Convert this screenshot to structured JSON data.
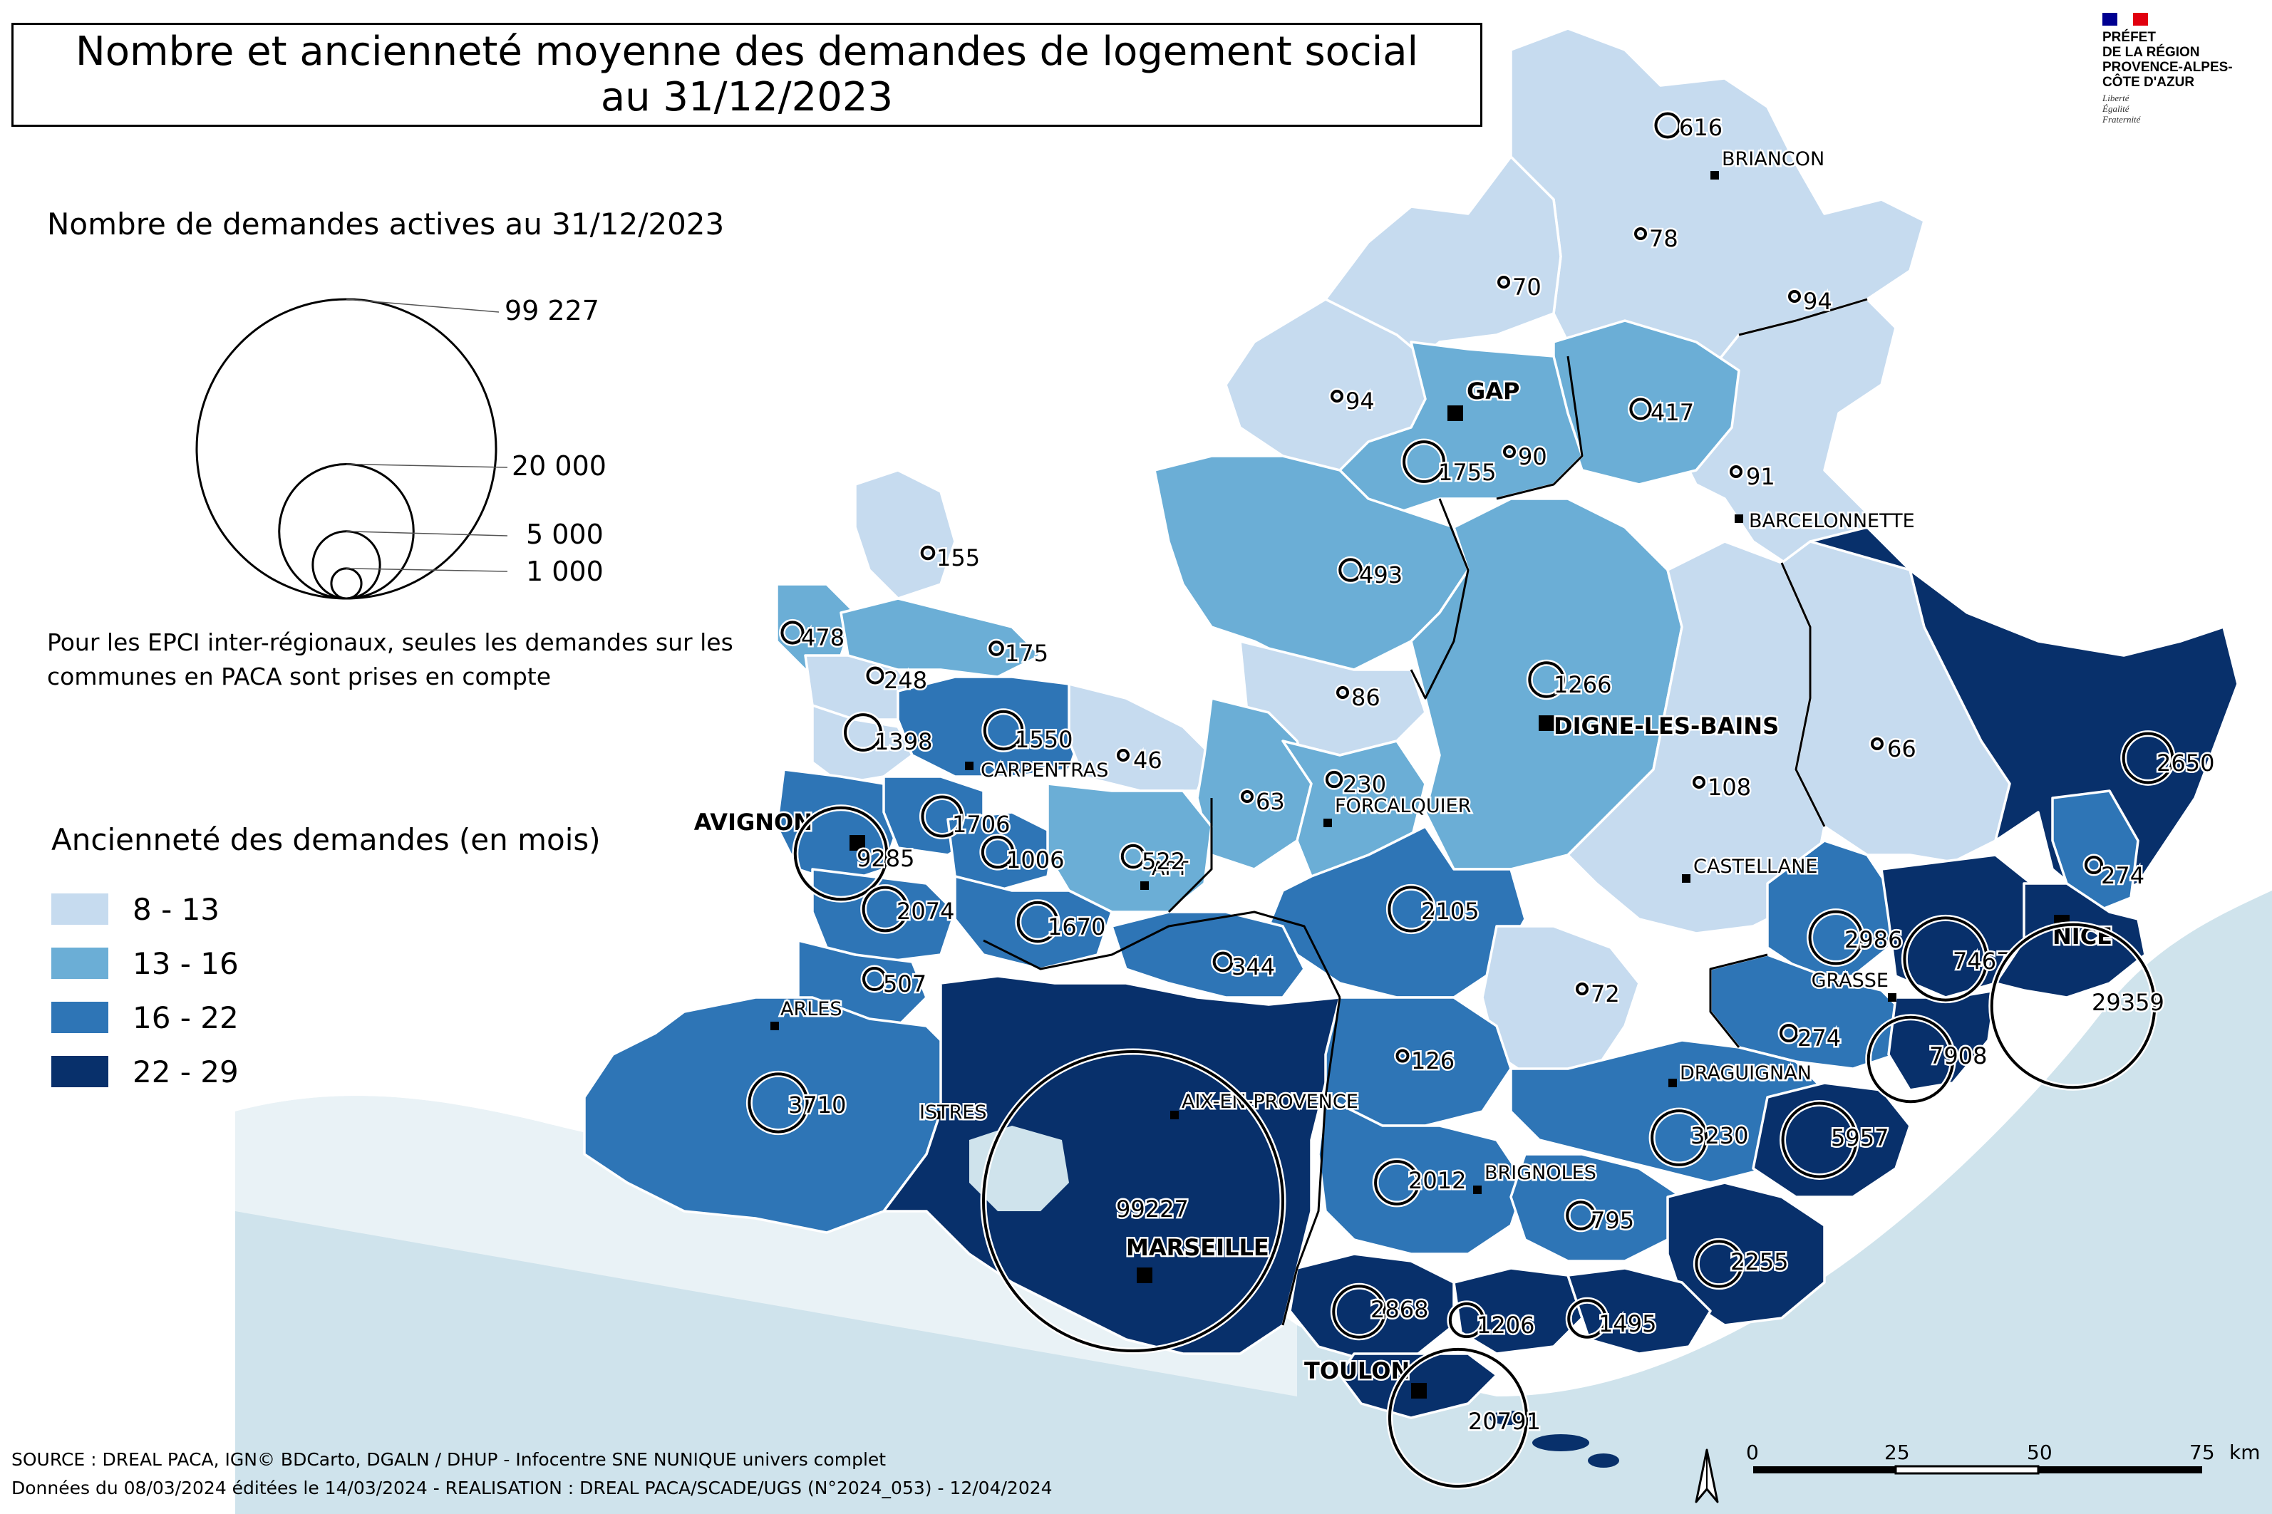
{
  "title": {
    "line1": "Nombre et ancienneté moyenne des demandes de logement social",
    "line2": "au 31/12/2023"
  },
  "logo": {
    "name_lines": [
      "PRÉFET",
      "DE LA RÉGION",
      "PROVENCE-ALPES-",
      "CÔTE D'AZUR"
    ],
    "motto": [
      "Liberté",
      "Égalité",
      "Fraternité"
    ],
    "flag_colors": [
      "#000091",
      "#ffffff",
      "#e1000f"
    ]
  },
  "legend_proportional": {
    "title": "Nombre de demandes actives au 31/12/2023",
    "values": [
      99227,
      20000,
      5000,
      1000
    ],
    "labels": [
      "99  227",
      "20  000",
      "5  000",
      "1  000"
    ]
  },
  "note": "Pour les EPCI inter-régionaux, seules les demandes sur les communes en PACA sont prises en compte",
  "legend_classes": {
    "title": "Ancienneté des demandes (en mois)",
    "classes": [
      {
        "label": "8 - 13",
        "color": "#c6dbef"
      },
      {
        "label": "13 - 16",
        "color": "#6baed6"
      },
      {
        "label": "16 - 22",
        "color": "#2e75b6"
      },
      {
        "label": "22 - 29",
        "color": "#08306b"
      }
    ]
  },
  "sea_color": "#cfe3ec",
  "cities": [
    {
      "name": "BRIANCON",
      "major": false
    },
    {
      "name": "GAP",
      "major": true
    },
    {
      "name": "BARCELONNETTE",
      "major": false
    },
    {
      "name": "DIGNE-LES-BAINS",
      "major": true
    },
    {
      "name": "CARPENTRAS",
      "major": false
    },
    {
      "name": "AVIGNON",
      "major": true
    },
    {
      "name": "FORCALQUIER",
      "major": false
    },
    {
      "name": "APT",
      "major": false
    },
    {
      "name": "CASTELLANE",
      "major": false
    },
    {
      "name": "GRASSE",
      "major": false
    },
    {
      "name": "NICE",
      "major": true
    },
    {
      "name": "ARLES",
      "major": false
    },
    {
      "name": "DRAGUIGNAN",
      "major": false
    },
    {
      "name": "ISTRES",
      "major": false
    },
    {
      "name": "AIX-EN-PROVENCE",
      "major": false
    },
    {
      "name": "BRIGNOLES",
      "major": false
    },
    {
      "name": "MARSEILLE",
      "major": true
    },
    {
      "name": "TOULON",
      "major": true
    }
  ],
  "epci_demands": [
    {
      "value": 616,
      "class": 0
    },
    {
      "value": 78,
      "class": 0
    },
    {
      "value": 70,
      "class": 0
    },
    {
      "value": 94,
      "class": 0
    },
    {
      "value": 94,
      "class": 0
    },
    {
      "value": 417,
      "class": 1
    },
    {
      "value": 1755,
      "class": 1
    },
    {
      "value": 90,
      "class": 1
    },
    {
      "value": 91,
      "class": 0
    },
    {
      "value": 155,
      "class": 0
    },
    {
      "value": 493,
      "class": 1
    },
    {
      "value": 478,
      "class": 1
    },
    {
      "value": 175,
      "class": 1
    },
    {
      "value": 248,
      "class": 0
    },
    {
      "value": 1266,
      "class": 1
    },
    {
      "value": 1398,
      "class": 0
    },
    {
      "value": 1550,
      "class": 2
    },
    {
      "value": 86,
      "class": 0
    },
    {
      "value": 46,
      "class": 0
    },
    {
      "value": 66,
      "class": 0
    },
    {
      "value": 2650,
      "class": 3
    },
    {
      "value": 63,
      "class": 1
    },
    {
      "value": 230,
      "class": 1
    },
    {
      "value": 108,
      "class": 0
    },
    {
      "value": 9285,
      "class": 2
    },
    {
      "value": 1706,
      "class": 2
    },
    {
      "value": 1006,
      "class": 2
    },
    {
      "value": 522,
      "class": 1
    },
    {
      "value": 274,
      "class": 2
    },
    {
      "value": 2074,
      "class": 2
    },
    {
      "value": 1670,
      "class": 2
    },
    {
      "value": 2105,
      "class": 2
    },
    {
      "value": 2986,
      "class": 2
    },
    {
      "value": 7467,
      "class": 3
    },
    {
      "value": 29359,
      "class": 3
    },
    {
      "value": 344,
      "class": 2
    },
    {
      "value": 507,
      "class": 2
    },
    {
      "value": 72,
      "class": 0
    },
    {
      "value": 126,
      "class": 2
    },
    {
      "value": 274,
      "class": 2
    },
    {
      "value": 7908,
      "class": 3
    },
    {
      "value": 3710,
      "class": 2
    },
    {
      "value": 3230,
      "class": 2
    },
    {
      "value": 5957,
      "class": 3
    },
    {
      "value": 99227,
      "class": 3
    },
    {
      "value": 2012,
      "class": 2
    },
    {
      "value": 795,
      "class": 2
    },
    {
      "value": 2255,
      "class": 3
    },
    {
      "value": 2868,
      "class": 3
    },
    {
      "value": 1206,
      "class": 3
    },
    {
      "value": 1495,
      "class": 3
    },
    {
      "value": 20791,
      "class": 3
    }
  ],
  "scale": {
    "ticks": [
      "0",
      "25",
      "50",
      "75"
    ],
    "unit": "km"
  },
  "source": {
    "line1": "SOURCE : DREAL PACA, IGN© BDCarto, DGALN / DHUP - Infocentre SNE NUNIQUE univers complet",
    "line2": "Données du 08/03/2024 éditées le 14/03/2024 - REALISATION : DREAL PACA/SCADE/UGS (N°2024_053) - 12/04/2024"
  }
}
